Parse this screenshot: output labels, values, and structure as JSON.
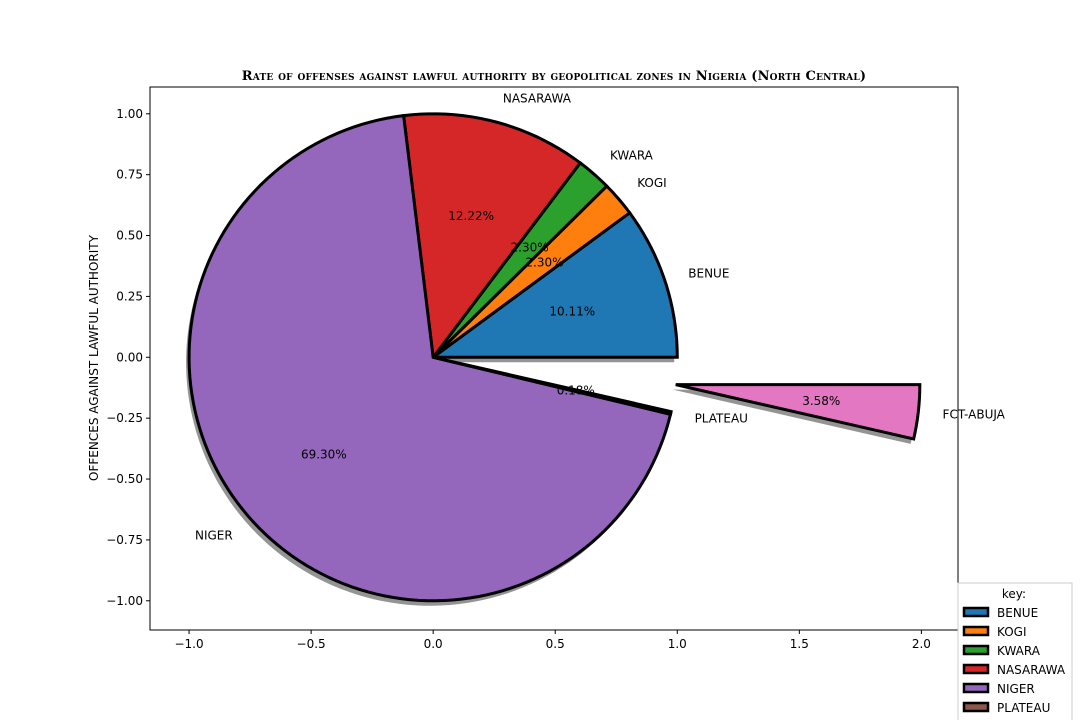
{
  "chart_data": {
    "type": "pie",
    "title": "Rate of offenses against lawful authority by geopolitical zones in Nigeria (North Central)",
    "ylabel": "OFFENCES AGAINST LAWFUL AUTHORITY",
    "xlim": [
      -1.16,
      2.15
    ],
    "ylim": [
      -1.12,
      1.11
    ],
    "xticks": [
      -1.0,
      -0.5,
      0.0,
      0.5,
      1.0,
      1.5,
      2.0
    ],
    "yticks": [
      1.0,
      0.75,
      0.5,
      0.25,
      0.0,
      -0.25,
      -0.5,
      -0.75,
      -1.0
    ],
    "xtick_labels": [
      "−1.0",
      "−0.5",
      "0.0",
      "0.5",
      "1.0",
      "1.5",
      "2.0"
    ],
    "ytick_labels": [
      "1.00",
      "0.75",
      "0.50",
      "0.25",
      "0.00",
      "−0.25",
      "−0.50",
      "−0.75",
      "−1.00"
    ],
    "shadow": true,
    "grid": false,
    "slices": [
      {
        "label": "BENUE",
        "value": 10.11,
        "pct_label": "10.11%",
        "color": "#1f77b4",
        "explode": 0
      },
      {
        "label": "KOGI",
        "value": 2.3,
        "pct_label": "2.30%",
        "color": "#ff7f0e",
        "explode": 0
      },
      {
        "label": "KWARA",
        "value": 2.3,
        "pct_label": "2.30%",
        "color": "#2ca02c",
        "explode": 0
      },
      {
        "label": "NASARAWA",
        "value": 12.22,
        "pct_label": "12.22%",
        "color": "#d62728",
        "explode": 0
      },
      {
        "label": "NIGER",
        "value": 69.3,
        "pct_label": "69.30%",
        "color": "#9467bd",
        "explode": 0
      },
      {
        "label": "PLATEAU",
        "value": 0.18,
        "pct_label": "0.18%",
        "color": "#8c564b",
        "explode": 0
      },
      {
        "label": "FCT-ABUJA",
        "value": 3.58,
        "pct_label": "3.58%",
        "color": "#e377c2",
        "explode": 1.0
      }
    ],
    "legend": {
      "title": "key:",
      "placement": "lower-right",
      "entries": [
        "BENUE",
        "KOGI",
        "KWARA",
        "NASARAWA",
        "NIGER",
        "PLATEAU"
      ]
    }
  }
}
